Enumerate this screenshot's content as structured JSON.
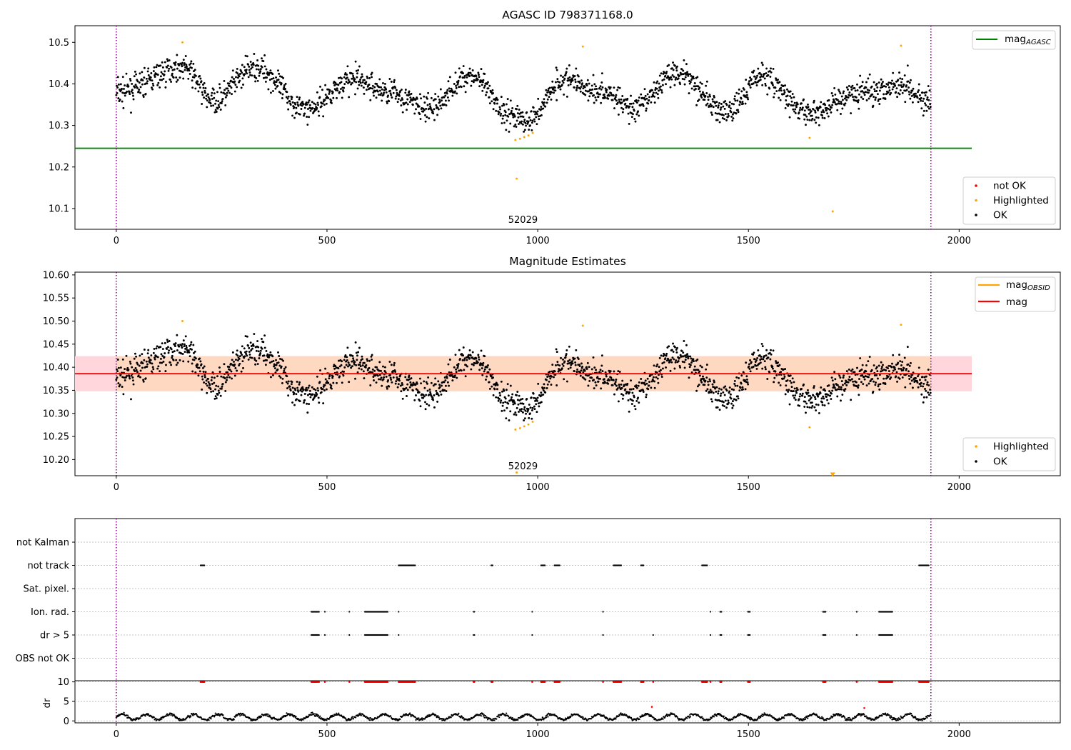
{
  "colors": {
    "ok": "#000000",
    "highlighted": "#ffa500",
    "not_ok": "#ff0000",
    "mag_agasc": "#008000",
    "mag_obsid": "#ffa500",
    "mag": "#ff0000",
    "band_outer": "#ffd6dc",
    "band_inner": "#ffd8c2",
    "obs_boundary": "#800080",
    "grid": "#b0b0b0"
  },
  "chart_data": [
    {
      "id": "agasc",
      "type": "scatter",
      "title": "AGASC ID 798371168.0",
      "xlim": [
        -98,
        2240
      ],
      "ylim": [
        10.05,
        10.54
      ],
      "xticks": [
        0,
        500,
        1000,
        1500,
        2000
      ],
      "yticks": [
        10.1,
        10.2,
        10.3,
        10.4,
        10.5
      ],
      "ytick_labels": [
        "10.1",
        "10.2",
        "10.3",
        "10.4",
        "10.5"
      ],
      "obs_boundaries": [
        0,
        1933
      ],
      "obsid_label": "52029",
      "obsid_label_x": 965,
      "mag_agasc": {
        "value": 10.245,
        "x_range": [
          -98,
          2030
        ]
      },
      "ok_series": {
        "name": "OK",
        "n_points": 1933,
        "segments": [
          [
            0,
            10.38
          ],
          [
            160,
            10.44
          ],
          [
            230,
            10.36
          ],
          [
            330,
            10.44
          ],
          [
            450,
            10.34
          ],
          [
            560,
            10.41
          ],
          [
            650,
            10.38
          ],
          [
            740,
            10.34
          ],
          [
            840,
            10.42
          ],
          [
            930,
            10.33
          ],
          [
            975,
            10.31
          ],
          [
            1060,
            10.41
          ],
          [
            1160,
            10.38
          ],
          [
            1230,
            10.34
          ],
          [
            1330,
            10.43
          ],
          [
            1450,
            10.33
          ],
          [
            1530,
            10.42
          ],
          [
            1640,
            10.33
          ],
          [
            1770,
            10.38
          ],
          [
            1870,
            10.4
          ],
          [
            1933,
            10.35
          ]
        ],
        "noise": 0.04
      },
      "highlighted": [
        [
          157,
          10.5
        ],
        [
          1107,
          10.49
        ],
        [
          1862,
          10.492
        ],
        [
          947,
          10.265
        ],
        [
          958,
          10.268
        ],
        [
          968,
          10.272
        ],
        [
          978,
          10.276
        ],
        [
          988,
          10.282
        ],
        [
          950,
          10.172
        ],
        [
          1645,
          10.27
        ],
        [
          1700,
          10.093
        ]
      ],
      "not_ok": [],
      "legend_upper": [
        "mag_AGASC"
      ],
      "legend_lower": [
        "not OK",
        "Highlighted",
        "OK"
      ]
    },
    {
      "id": "estimates",
      "type": "scatter",
      "title": "Magnitude Estimates",
      "xlim": [
        -98,
        2240
      ],
      "ylim": [
        10.165,
        10.606
      ],
      "xticks": [
        0,
        500,
        1000,
        1500,
        2000
      ],
      "yticks": [
        10.2,
        10.25,
        10.3,
        10.35,
        10.4,
        10.45,
        10.5,
        10.55,
        10.6
      ],
      "ytick_labels": [
        "10.20",
        "10.25",
        "10.30",
        "10.35",
        "10.40",
        "10.45",
        "10.50",
        "10.55",
        "10.60"
      ],
      "obs_boundaries": [
        0,
        1933
      ],
      "obsid_label": "52029",
      "obsid_label_x": 965,
      "mag": {
        "value": 10.386,
        "x_range": [
          -98,
          2030
        ]
      },
      "mag_obsid": {
        "value": 10.386,
        "x_range": [
          0,
          1933
        ]
      },
      "mag_band": {
        "low": 10.348,
        "high": 10.424,
        "x_range": [
          -98,
          2030
        ]
      },
      "clipped_marker": {
        "x": 1700,
        "y": 10.168
      },
      "legend_upper": [
        "mag_OBSID",
        "mag"
      ],
      "legend_lower": [
        "Highlighted",
        "OK"
      ]
    },
    {
      "id": "flags",
      "type": "scatter",
      "xlim": [
        -98,
        2240
      ],
      "xticks": [
        0,
        500,
        1000,
        1500,
        2000
      ],
      "obs_boundaries": [
        0,
        1933
      ],
      "flag_labels": [
        "not Kalman",
        "not track",
        "Sat. pixel.",
        "Ion. rad.",
        "dr > 5",
        "OBS not OK"
      ],
      "flag_ranges": {
        "not Kalman": [],
        "not track": [
          [
            200,
            210
          ],
          [
            670,
            710
          ],
          [
            890,
            893
          ],
          [
            1008,
            1018
          ],
          [
            1040,
            1052
          ],
          [
            1180,
            1198
          ],
          [
            1245,
            1252
          ],
          [
            1390,
            1402
          ],
          [
            1905,
            1928
          ]
        ],
        "Sat. pixel.": [],
        "Ion. rad.": [
          [
            463,
            482
          ],
          [
            495,
            495
          ],
          [
            553,
            553
          ],
          [
            590,
            645
          ],
          [
            670,
            670
          ],
          [
            848,
            850
          ],
          [
            987,
            987
          ],
          [
            1155,
            1155
          ],
          [
            1410,
            1410
          ],
          [
            1433,
            1436
          ],
          [
            1499,
            1504
          ],
          [
            1677,
            1683
          ],
          [
            1757,
            1757
          ],
          [
            1810,
            1842
          ]
        ],
        "dr > 5": [
          [
            463,
            482
          ],
          [
            495,
            495
          ],
          [
            553,
            553
          ],
          [
            590,
            645
          ],
          [
            670,
            670
          ],
          [
            848,
            850
          ],
          [
            987,
            987
          ],
          [
            1155,
            1155
          ],
          [
            1274,
            1274
          ],
          [
            1410,
            1410
          ],
          [
            1433,
            1436
          ],
          [
            1499,
            1504
          ],
          [
            1677,
            1683
          ],
          [
            1757,
            1757
          ],
          [
            1810,
            1842
          ]
        ],
        "OBS not OK": []
      }
    },
    {
      "id": "dr",
      "type": "scatter",
      "ylabel": "dr",
      "xlim": [
        -98,
        2240
      ],
      "ylim": [
        -0.5,
        10.3
      ],
      "xticks": [
        0,
        500,
        1000,
        1500,
        2000
      ],
      "yticks": [
        0,
        5,
        10
      ],
      "ytick_labels": [
        "0",
        "5",
        "10"
      ],
      "obs_boundaries": [
        0,
        1933
      ],
      "capped_value": 10,
      "capped_ranges": [
        [
          200,
          210
        ],
        [
          463,
          482
        ],
        [
          495,
          495
        ],
        [
          553,
          553
        ],
        [
          590,
          645
        ],
        [
          670,
          710
        ],
        [
          848,
          850
        ],
        [
          890,
          893
        ],
        [
          987,
          987
        ],
        [
          1008,
          1018
        ],
        [
          1040,
          1052
        ],
        [
          1155,
          1155
        ],
        [
          1180,
          1198
        ],
        [
          1245,
          1252
        ],
        [
          1274,
          1274
        ],
        [
          1390,
          1402
        ],
        [
          1410,
          1410
        ],
        [
          1433,
          1436
        ],
        [
          1499,
          1504
        ],
        [
          1677,
          1683
        ],
        [
          1757,
          1757
        ],
        [
          1810,
          1842
        ],
        [
          1905,
          1928
        ]
      ],
      "outliers": [
        [
          1271,
          3.6
        ],
        [
          1775,
          3.3
        ]
      ]
    }
  ]
}
